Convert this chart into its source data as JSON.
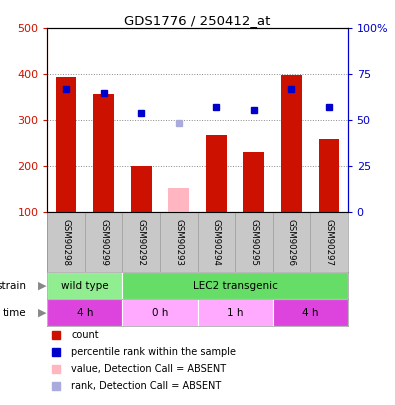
{
  "title": "GDS1776 / 250412_at",
  "samples": [
    "GSM90298",
    "GSM90299",
    "GSM90292",
    "GSM90293",
    "GSM90294",
    "GSM90295",
    "GSM90296",
    "GSM90297"
  ],
  "counts": [
    395,
    357,
    200,
    null,
    268,
    230,
    398,
    260
  ],
  "counts_absent": [
    null,
    null,
    null,
    152,
    null,
    null,
    null,
    null
  ],
  "percentile_ranks": [
    368,
    360,
    315,
    null,
    330,
    322,
    368,
    330
  ],
  "percentile_ranks_absent": [
    null,
    null,
    null,
    295,
    null,
    null,
    null,
    null
  ],
  "left_ylim": [
    100,
    500
  ],
  "right_ylim": [
    0,
    100
  ],
  "left_yticks": [
    100,
    200,
    300,
    400,
    500
  ],
  "right_yticks": [
    0,
    25,
    50,
    75,
    100
  ],
  "right_yticklabels": [
    "0",
    "25",
    "50",
    "75",
    "100%"
  ],
  "strain_labels": [
    {
      "label": "wild type",
      "start": 0,
      "end": 2,
      "color": "#90ee90"
    },
    {
      "label": "LEC2 transgenic",
      "start": 2,
      "end": 8,
      "color": "#66dd66"
    }
  ],
  "time_labels": [
    {
      "label": "4 h",
      "start": 0,
      "end": 2,
      "color": "#dd44dd"
    },
    {
      "label": "0 h",
      "start": 2,
      "end": 4,
      "color": "#ffaaff"
    },
    {
      "label": "1 h",
      "start": 4,
      "end": 6,
      "color": "#ffaaff"
    },
    {
      "label": "4 h",
      "start": 6,
      "end": 8,
      "color": "#dd44dd"
    }
  ],
  "bar_color": "#cc1100",
  "bar_absent_color": "#ffb6c1",
  "rank_color": "#0000cc",
  "rank_absent_color": "#aaaadd",
  "bar_width": 0.55,
  "dotted_grid_vals": [
    200,
    300,
    400
  ],
  "axis_left_color": "#cc1100",
  "axis_right_color": "#0000cc",
  "background_label": "#c8c8c8",
  "label_separator_color": "#999999",
  "legend_items": [
    {
      "color": "#cc1100",
      "marker": "s",
      "label": "count"
    },
    {
      "color": "#0000cc",
      "marker": "s",
      "label": "percentile rank within the sample"
    },
    {
      "color": "#ffb6c1",
      "marker": "s",
      "label": "value, Detection Call = ABSENT"
    },
    {
      "color": "#aaaadd",
      "marker": "s",
      "label": "rank, Detection Call = ABSENT"
    }
  ]
}
